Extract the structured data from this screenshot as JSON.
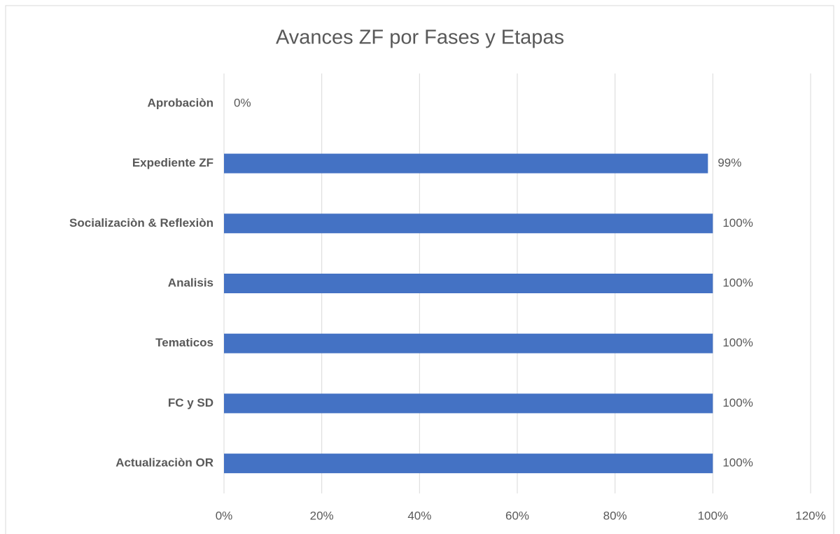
{
  "chart_data": {
    "type": "barh",
    "title": "Avances ZF por Fases y Etapas",
    "categories": [
      "Aprobaciòn",
      "Expediente ZF",
      "Socializaciòn & Reflexiòn",
      "Analisis",
      "Tematicos",
      "FC y SD",
      "Actualizaciòn OR"
    ],
    "values": [
      0,
      99,
      100,
      100,
      100,
      100,
      100
    ],
    "value_labels": [
      "0%",
      "99%",
      "100%",
      "100%",
      "100%",
      "100%",
      "100%"
    ],
    "color": "#4472c4",
    "xlim": [
      0,
      120
    ],
    "xticks": [
      {
        "value": 0,
        "label": "0%"
      },
      {
        "value": 20,
        "label": "20%"
      },
      {
        "value": 40,
        "label": "40%"
      },
      {
        "value": 60,
        "label": "60%"
      },
      {
        "value": 80,
        "label": "80%"
      },
      {
        "value": 100,
        "label": "100%"
      },
      {
        "value": 120,
        "label": "120%"
      }
    ],
    "grid": true
  }
}
